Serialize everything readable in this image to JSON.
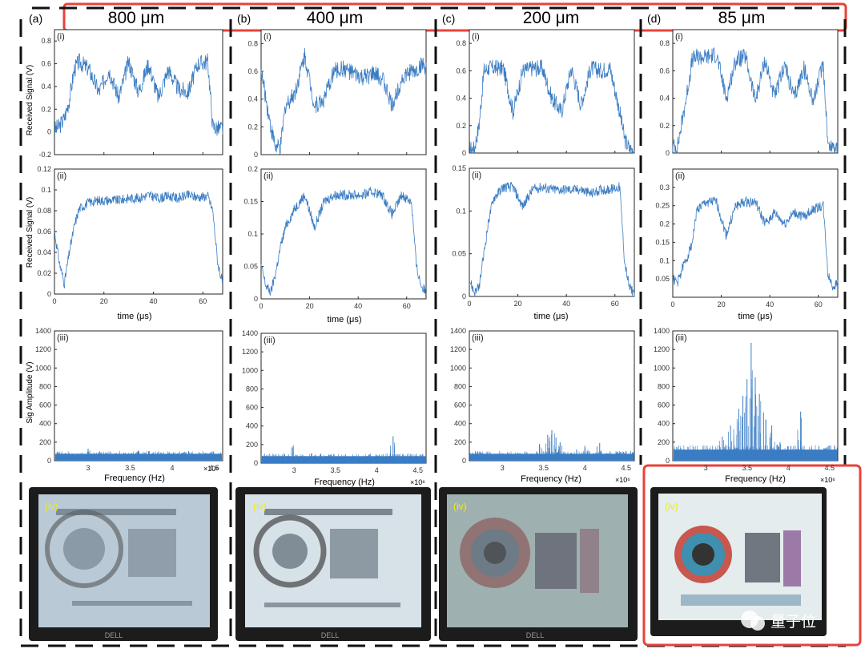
{
  "figure": {
    "columns": [
      {
        "letter": "(a)",
        "size": "800 μm"
      },
      {
        "letter": "(b)",
        "size": "400 μm"
      },
      {
        "letter": "(c)",
        "size": "200 μm"
      },
      {
        "letter": "(d)",
        "size": "85 μm"
      }
    ],
    "row_labels": {
      "i": "(i)",
      "ii": "(ii)",
      "iii": "(iii)",
      "iv": "(iv)"
    },
    "ylabels": {
      "i": "Received Signal (V)",
      "ii": "Received Signal (V)",
      "iii": "Sig Amplitude (V)"
    },
    "xlabels": {
      "time": "time (μs)",
      "freq": "Frequency (Hz)"
    },
    "freq_exponent": "×10⁶",
    "monitor_brand": "DELL",
    "watermark": "量子位",
    "colors": {
      "trace": "#3b7dc4",
      "highlight": "#e8423a",
      "axis": "#262626",
      "iv_label": "#f0f000"
    }
  },
  "chart_data": [
    {
      "panel": "a-i",
      "type": "line",
      "xlim": [
        0,
        68
      ],
      "ylim": [
        -0.2,
        0.9
      ],
      "yticks": [
        -0.2,
        0,
        0.2,
        0.4,
        0.6,
        0.8
      ],
      "x": [
        0,
        2,
        4,
        6,
        8,
        10,
        14,
        18,
        22,
        26,
        30,
        34,
        38,
        42,
        46,
        50,
        54,
        58,
        62,
        64,
        66,
        68
      ],
      "y": [
        0.02,
        0.05,
        0.12,
        0.28,
        0.55,
        0.62,
        0.55,
        0.35,
        0.55,
        0.3,
        0.62,
        0.35,
        0.6,
        0.3,
        0.55,
        0.38,
        0.35,
        0.6,
        0.62,
        0.05,
        0.03,
        0.03
      ]
    },
    {
      "panel": "b-i",
      "type": "line",
      "xlim": [
        0,
        68
      ],
      "ylim": [
        0,
        0.9
      ],
      "yticks": [
        0,
        0.2,
        0.4,
        0.6,
        0.8
      ],
      "x": [
        0,
        2,
        4,
        6,
        8,
        10,
        14,
        18,
        22,
        26,
        30,
        34,
        38,
        42,
        46,
        50,
        54,
        58,
        62,
        64,
        66,
        68
      ],
      "y": [
        0.6,
        0.4,
        0.2,
        0.05,
        0.05,
        0.35,
        0.45,
        0.72,
        0.35,
        0.4,
        0.6,
        0.62,
        0.58,
        0.55,
        0.58,
        0.55,
        0.35,
        0.55,
        0.6,
        0.6,
        0.65,
        0.62
      ]
    },
    {
      "panel": "c-i",
      "type": "line",
      "xlim": [
        0,
        68
      ],
      "ylim": [
        0,
        0.9
      ],
      "yticks": [
        0,
        0.2,
        0.4,
        0.6,
        0.8
      ],
      "x": [
        0,
        2,
        4,
        6,
        8,
        10,
        14,
        18,
        22,
        26,
        30,
        34,
        38,
        42,
        46,
        50,
        54,
        58,
        62,
        64,
        66,
        68
      ],
      "y": [
        0.03,
        0.03,
        0.2,
        0.6,
        0.62,
        0.62,
        0.62,
        0.3,
        0.6,
        0.62,
        0.62,
        0.4,
        0.3,
        0.62,
        0.35,
        0.62,
        0.6,
        0.62,
        0.3,
        0.1,
        0.03,
        0.02
      ]
    },
    {
      "panel": "d-i",
      "type": "line",
      "xlim": [
        0,
        68
      ],
      "ylim": [
        0,
        0.9
      ],
      "yticks": [
        0,
        0.2,
        0.4,
        0.6,
        0.8
      ],
      "x": [
        0,
        2,
        4,
        6,
        8,
        10,
        14,
        18,
        22,
        26,
        30,
        34,
        38,
        42,
        46,
        50,
        54,
        58,
        62,
        64,
        66,
        68
      ],
      "y": [
        0.05,
        0.05,
        0.25,
        0.45,
        0.68,
        0.7,
        0.7,
        0.72,
        0.4,
        0.68,
        0.7,
        0.38,
        0.68,
        0.4,
        0.65,
        0.4,
        0.62,
        0.38,
        0.66,
        0.05,
        0.05,
        0.05
      ]
    },
    {
      "panel": "a-ii",
      "type": "line",
      "xlim": [
        0,
        68
      ],
      "ylim": [
        0,
        0.12
      ],
      "yticks": [
        0,
        0.02,
        0.04,
        0.06,
        0.08,
        0.1,
        0.12
      ],
      "x": [
        0,
        2,
        4,
        6,
        8,
        10,
        14,
        18,
        22,
        26,
        30,
        34,
        38,
        42,
        46,
        50,
        54,
        58,
        62,
        64,
        66,
        68
      ],
      "y": [
        0.06,
        0.03,
        0.01,
        0.04,
        0.065,
        0.082,
        0.088,
        0.09,
        0.09,
        0.09,
        0.092,
        0.092,
        0.095,
        0.092,
        0.094,
        0.092,
        0.095,
        0.093,
        0.094,
        0.08,
        0.03,
        0.01
      ]
    },
    {
      "panel": "b-ii",
      "type": "line",
      "xlim": [
        0,
        68
      ],
      "ylim": [
        0,
        0.2
      ],
      "yticks": [
        0,
        0.05,
        0.1,
        0.15,
        0.2
      ],
      "x": [
        0,
        2,
        4,
        6,
        8,
        10,
        14,
        18,
        22,
        26,
        30,
        34,
        38,
        42,
        46,
        50,
        54,
        58,
        62,
        64,
        66,
        68
      ],
      "y": [
        0.05,
        0.02,
        0.01,
        0.04,
        0.08,
        0.11,
        0.14,
        0.16,
        0.11,
        0.15,
        0.16,
        0.16,
        0.16,
        0.16,
        0.165,
        0.16,
        0.13,
        0.16,
        0.15,
        0.05,
        0.02,
        0.01
      ]
    },
    {
      "panel": "c-ii",
      "type": "line",
      "xlim": [
        0,
        68
      ],
      "ylim": [
        0,
        0.15
      ],
      "yticks": [
        0,
        0.05,
        0.1,
        0.15
      ],
      "x": [
        0,
        2,
        4,
        6,
        8,
        10,
        14,
        18,
        22,
        26,
        30,
        34,
        38,
        42,
        46,
        50,
        54,
        58,
        62,
        64,
        66,
        68
      ],
      "y": [
        0.02,
        0.005,
        0.01,
        0.05,
        0.09,
        0.115,
        0.128,
        0.128,
        0.105,
        0.125,
        0.128,
        0.125,
        0.125,
        0.125,
        0.125,
        0.12,
        0.125,
        0.125,
        0.128,
        0.04,
        0.01,
        0.005
      ]
    },
    {
      "panel": "d-ii",
      "type": "line",
      "xlim": [
        0,
        68
      ],
      "ylim": [
        0,
        0.35
      ],
      "yticks": [
        0.05,
        0.1,
        0.15,
        0.2,
        0.25,
        0.3
      ],
      "x": [
        0,
        2,
        4,
        6,
        8,
        10,
        14,
        18,
        22,
        26,
        30,
        34,
        38,
        42,
        46,
        50,
        54,
        58,
        62,
        64,
        66,
        68
      ],
      "y": [
        0.05,
        0.04,
        0.08,
        0.11,
        0.15,
        0.24,
        0.26,
        0.26,
        0.17,
        0.25,
        0.26,
        0.26,
        0.2,
        0.23,
        0.2,
        0.23,
        0.22,
        0.24,
        0.25,
        0.06,
        0.03,
        0.04
      ]
    },
    {
      "panel": "a-iii",
      "type": "bar",
      "xlim": [
        2.6,
        4.6
      ],
      "ylim": [
        0,
        1400
      ],
      "yticks": [
        0,
        200,
        400,
        600,
        800,
        1000,
        1200,
        1400
      ],
      "xticks": [
        3,
        3.5,
        4,
        4.5
      ],
      "floor": 75,
      "peaks": [
        {
          "x": 3.0,
          "y": 130
        },
        {
          "x": 3.6,
          "y": 110
        }
      ]
    },
    {
      "panel": "b-iii",
      "type": "bar",
      "xlim": [
        2.6,
        4.6
      ],
      "ylim": [
        0,
        1400
      ],
      "yticks": [
        0,
        200,
        400,
        600,
        800,
        1000,
        1200,
        1400
      ],
      "xticks": [
        3,
        3.5,
        4,
        4.5
      ],
      "floor": 75,
      "peaks": [
        {
          "x": 2.99,
          "y": 190
        },
        {
          "x": 4.2,
          "y": 290
        }
      ]
    },
    {
      "panel": "c-iii",
      "type": "bar",
      "xlim": [
        2.6,
        4.6
      ],
      "ylim": [
        0,
        1400
      ],
      "yticks": [
        0,
        200,
        400,
        600,
        800,
        1000,
        1200,
        1400
      ],
      "xticks": [
        3,
        3.5,
        4,
        4.5
      ],
      "floor": 75,
      "peaks": [
        {
          "x": 3.45,
          "y": 180
        },
        {
          "x": 3.55,
          "y": 280
        },
        {
          "x": 3.6,
          "y": 330
        },
        {
          "x": 3.65,
          "y": 250
        },
        {
          "x": 3.7,
          "y": 200
        },
        {
          "x": 3.9,
          "y": 120
        },
        {
          "x": 4.0,
          "y": 160
        },
        {
          "x": 4.18,
          "y": 190
        }
      ]
    },
    {
      "panel": "d-iii",
      "type": "bar",
      "xlim": [
        2.6,
        4.6
      ],
      "ylim": [
        0,
        1400
      ],
      "yticks": [
        0,
        200,
        400,
        600,
        800,
        1000,
        1200,
        1400
      ],
      "xticks": [
        3,
        3.5,
        4,
        4.5
      ],
      "floor": 120,
      "peaks": [
        {
          "x": 3.2,
          "y": 260
        },
        {
          "x": 3.3,
          "y": 380
        },
        {
          "x": 3.4,
          "y": 560
        },
        {
          "x": 3.45,
          "y": 700
        },
        {
          "x": 3.5,
          "y": 880
        },
        {
          "x": 3.55,
          "y": 1270
        },
        {
          "x": 3.6,
          "y": 900
        },
        {
          "x": 3.65,
          "y": 720
        },
        {
          "x": 3.7,
          "y": 520
        },
        {
          "x": 3.8,
          "y": 380
        },
        {
          "x": 3.9,
          "y": 200
        },
        {
          "x": 4.15,
          "y": 530
        }
      ]
    }
  ]
}
